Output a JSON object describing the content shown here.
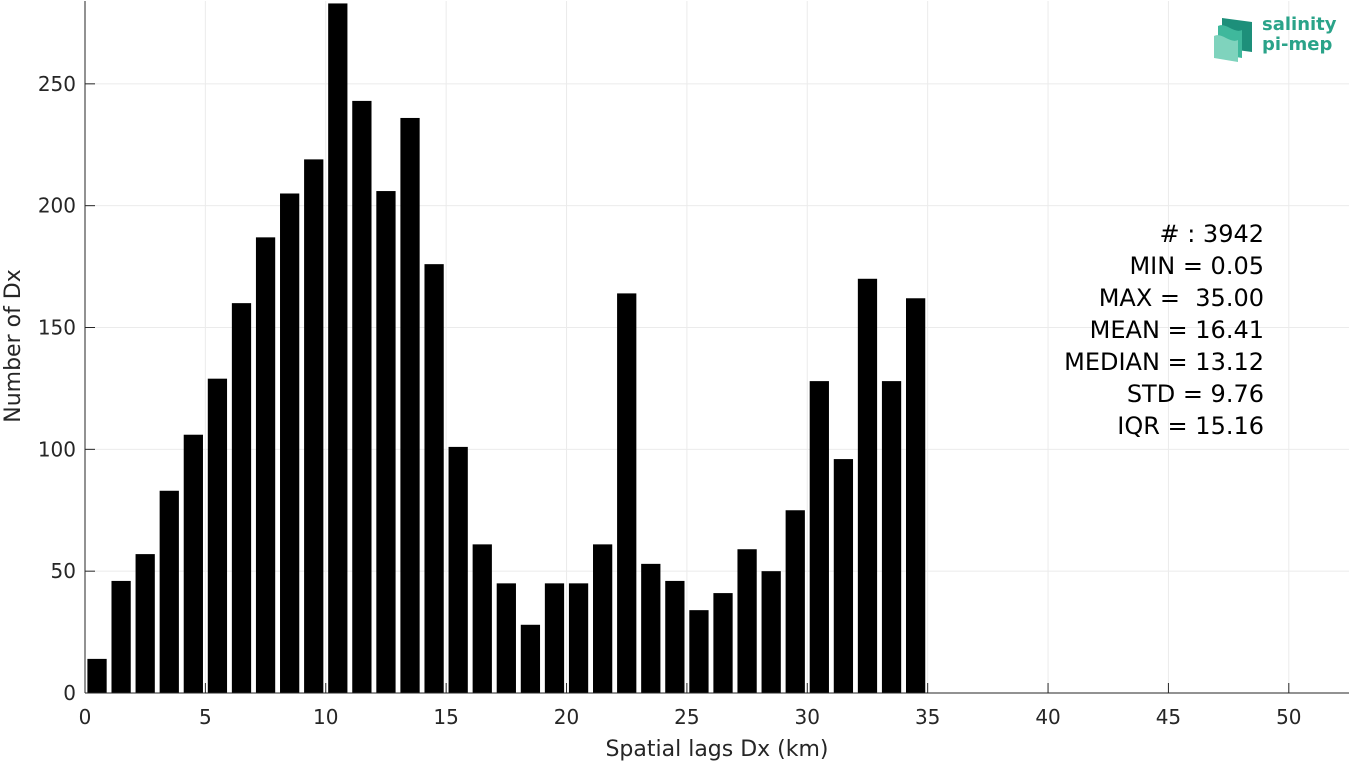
{
  "chart_data": {
    "type": "bar",
    "xlabel": "Spatial lags Dx (km)",
    "ylabel": "Number of Dx",
    "xlim": [
      0,
      52.5
    ],
    "ylim": [
      0,
      284
    ],
    "xticks": [
      0,
      5,
      10,
      15,
      20,
      25,
      30,
      35,
      40,
      45,
      50
    ],
    "yticks": [
      0,
      50,
      100,
      150,
      200,
      250
    ],
    "grid": true,
    "bar_color": "#000000",
    "x": [
      0.5,
      1.5,
      2.5,
      3.5,
      4.5,
      5.5,
      6.5,
      7.5,
      8.5,
      9.5,
      10.5,
      11.5,
      12.5,
      13.5,
      14.5,
      15.5,
      16.5,
      17.5,
      18.5,
      19.5,
      20.5,
      21.5,
      22.5,
      23.5,
      24.5,
      25.5,
      26.5,
      27.5,
      28.5,
      29.5,
      30.5,
      31.5,
      32.5,
      33.5,
      34.5
    ],
    "values": [
      14,
      46,
      57,
      83,
      106,
      129,
      160,
      187,
      205,
      219,
      283,
      243,
      206,
      236,
      176,
      101,
      61,
      45,
      28,
      45,
      45,
      61,
      164,
      53,
      46,
      34,
      41,
      59,
      50,
      75,
      128,
      96,
      170,
      128,
      162
    ],
    "annotations": [
      "# : 3942",
      "MIN = 0.05",
      "MAX =  35.00",
      "MEAN = 16.41",
      "MEDIAN = 13.12",
      "STD = 9.76",
      "IQR = 15.16"
    ]
  },
  "logo": {
    "line1": "salinity",
    "line2": "pi-mep",
    "color": "#2aa389"
  }
}
